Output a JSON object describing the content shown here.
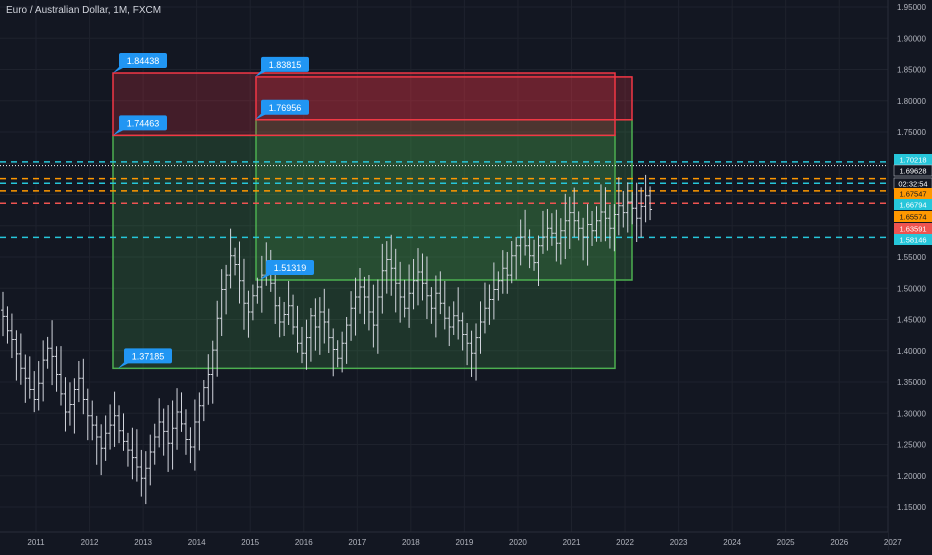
{
  "chart_data": {
    "type": "bar",
    "title": "Euro / Australian Dollar, 1M, FXCM",
    "y_ticks": [
      "1.95000",
      "1.90000",
      "1.85000",
      "1.80000",
      "1.75000",
      "1.70000",
      "1.65000",
      "1.60000",
      "1.55000",
      "1.50000",
      "1.45000",
      "1.40000",
      "1.35000",
      "1.30000",
      "1.25000",
      "1.20000",
      "1.15000"
    ],
    "y_tick_values": [
      1.95,
      1.9,
      1.85,
      1.8,
      1.75,
      1.7,
      1.65,
      1.6,
      1.55,
      1.5,
      1.45,
      1.4,
      1.35,
      1.3,
      1.25,
      1.2,
      1.15
    ],
    "x_ticks": [
      "2011",
      "2012",
      "2013",
      "2014",
      "2015",
      "2016",
      "2017",
      "2018",
      "2019",
      "2020",
      "2021",
      "2022",
      "2023",
      "2024",
      "2025",
      "2026",
      "2027"
    ],
    "ylim": [
      1.12,
      1.96
    ],
    "grid": true,
    "monthly_closes": [
      1.455,
      1.432,
      1.418,
      1.395,
      1.372,
      1.356,
      1.338,
      1.322,
      1.348,
      1.385,
      1.404,
      1.391,
      1.362,
      1.331,
      1.302,
      1.314,
      1.338,
      1.356,
      1.322,
      1.296,
      1.281,
      1.262,
      1.244,
      1.268,
      1.281,
      1.296,
      1.272,
      1.255,
      1.241,
      1.229,
      1.214,
      1.196,
      1.212,
      1.238,
      1.262,
      1.286,
      1.271,
      1.252,
      1.276,
      1.302,
      1.283,
      1.258,
      1.246,
      1.286,
      1.312,
      1.341,
      1.362,
      1.401,
      1.452,
      1.498,
      1.521,
      1.552,
      1.538,
      1.512,
      1.476,
      1.462,
      1.488,
      1.502,
      1.521,
      1.532,
      1.508,
      1.472,
      1.446,
      1.458,
      1.472,
      1.438,
      1.412,
      1.396,
      1.421,
      1.456,
      1.438,
      1.462,
      1.446,
      1.421,
      1.402,
      1.388,
      1.412,
      1.441,
      1.468,
      1.486,
      1.502,
      1.486,
      1.462,
      1.441,
      1.486,
      1.528,
      1.546,
      1.532,
      1.508,
      1.486,
      1.468,
      1.492,
      1.512,
      1.526,
      1.508,
      1.488,
      1.468,
      1.492,
      1.476,
      1.452,
      1.438,
      1.456,
      1.448,
      1.426,
      1.412,
      1.396,
      1.421,
      1.446,
      1.468,
      1.482,
      1.498,
      1.512,
      1.532,
      1.521,
      1.552,
      1.568,
      1.582,
      1.568,
      1.552,
      1.541,
      1.568,
      1.582,
      1.596,
      1.588,
      1.572,
      1.592,
      1.608,
      1.621,
      1.608,
      1.596,
      1.582,
      1.602,
      1.592,
      1.608,
      1.622,
      1.612,
      1.596,
      1.618,
      1.632,
      1.621,
      1.638,
      1.628,
      1.612,
      1.631,
      1.648,
      1.626
    ],
    "price_levels": [
      {
        "label": "1.70218",
        "value": 1.70218,
        "color": "#26c6da"
      },
      {
        "label": "1.69628",
        "value": 1.69628,
        "color": "#ffffff"
      },
      {
        "label": "02:32:54",
        "value": 1.6828,
        "color": "#ffffff"
      },
      {
        "label": "1.67547",
        "value": 1.67547,
        "color": "#ff9800"
      },
      {
        "label": "1.66794",
        "value": 1.66794,
        "color": "#26c6da"
      },
      {
        "label": "1.65574",
        "value": 1.65574,
        "color": "#ff9800"
      },
      {
        "label": "1.63591",
        "value": 1.63591,
        "color": "#ef5350"
      },
      {
        "label": "1.58146",
        "value": 1.58146,
        "color": "#26c6da"
      }
    ],
    "zones": [
      {
        "kind": "target",
        "color": "#f23645",
        "label": "1.84438",
        "top": 1.84438,
        "bottom": 1.74463,
        "label_bottom": "1.74463"
      },
      {
        "kind": "target",
        "color": "#f23645",
        "label": "1.83815",
        "top": 1.83815,
        "bottom": 1.76956,
        "label_bottom": "1.76956"
      },
      {
        "kind": "range",
        "color": "#4caf50",
        "top": 1.74463,
        "bottom": 1.37185,
        "label_bottom": "1.37185"
      },
      {
        "kind": "range",
        "color": "#4caf50",
        "top": 1.76956,
        "bottom": 1.51319,
        "label_bottom": "1.51319"
      }
    ]
  }
}
